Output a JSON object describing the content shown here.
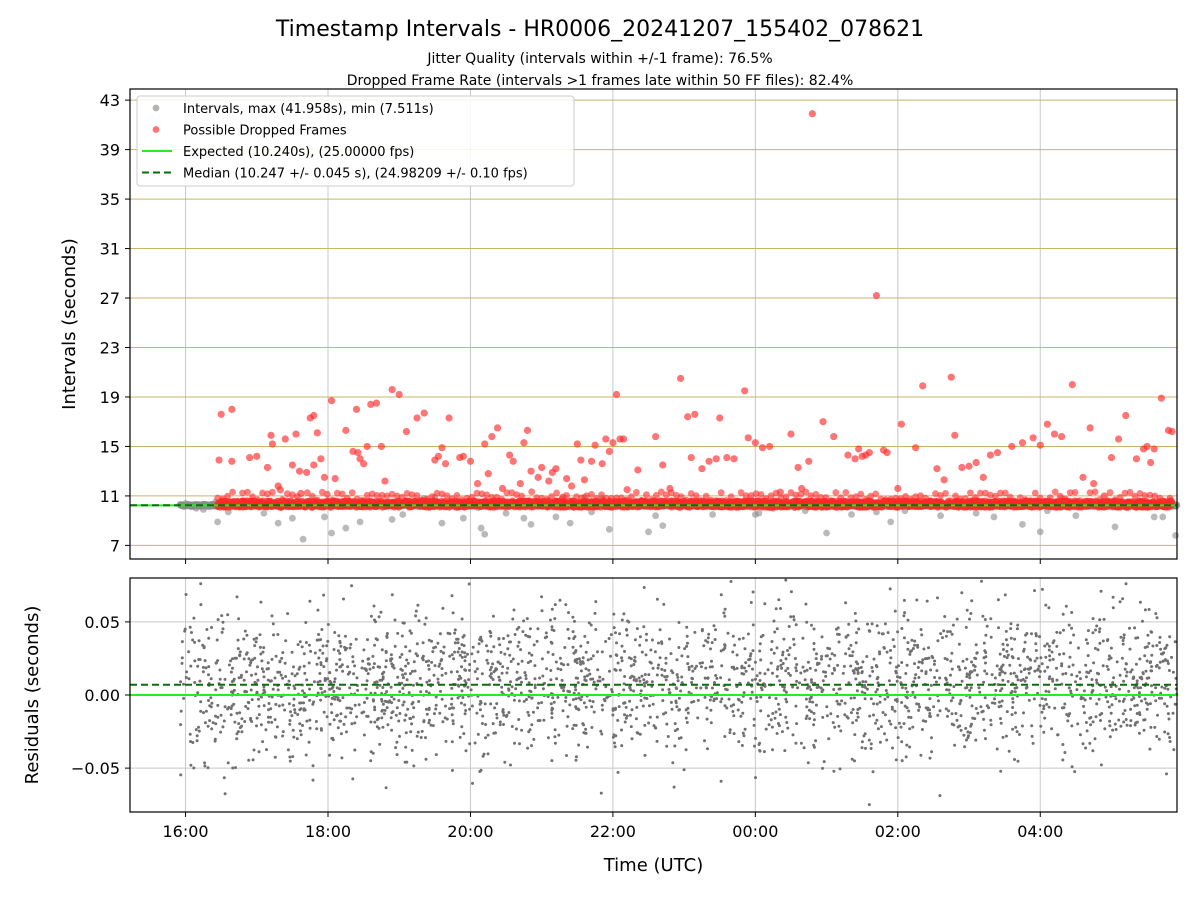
{
  "chart_data": [
    {
      "id": "intervals",
      "type": "scatter",
      "title": "Timestamp Intervals - HR0006_20241207_155402_078621",
      "subtitle_1": "Jitter Quality (intervals within +/-1 frame): 76.5%",
      "subtitle_2": "Dropped Frame Rate (intervals >1 frames late within 50 FF files): 82.4%",
      "xlabel": "",
      "ylabel": "Intervals (seconds)",
      "x_unit": "hours UTC",
      "xlim": [
        15.22,
        29.92
      ],
      "ylim": [
        5.9,
        43.9
      ],
      "yticks": [
        7,
        11,
        15,
        19,
        23,
        27,
        31,
        35,
        39,
        43
      ],
      "ytick_labels": [
        "7",
        "11",
        "15",
        "19",
        "23",
        "27",
        "31",
        "35",
        "39",
        "43"
      ],
      "hgrid_color": "#c9b46a",
      "vgrid_color": "#c8c8c8",
      "expected_interval": 10.24,
      "median_interval": 10.247,
      "legend_position": "top-left",
      "legend": [
        {
          "label": "Intervals, max (41.958s), min (7.511s)",
          "marker": "dot",
          "color": "#8c8c8c"
        },
        {
          "label": "Possible Dropped Frames",
          "marker": "dot",
          "color": "#ff2a2a"
        },
        {
          "label": "Expected (10.240s), (25.00000 fps)",
          "marker": "line",
          "color": "#22ee22"
        },
        {
          "label": "Median (10.247 +/- 0.045 s), (24.98209 +/- 0.10 fps)",
          "marker": "dashed",
          "color": "#0a6e0a"
        }
      ],
      "series": [
        {
          "name": "Intervals, max (41.958s), min (7.511s)",
          "color": "#8c8c8c",
          "points": [
            [
              15.92,
              10.3
            ],
            [
              16.0,
              10.4
            ],
            [
              16.15,
              10.0
            ],
            [
              16.25,
              9.9
            ],
            [
              16.42,
              10.5
            ],
            [
              16.45,
              8.9
            ],
            [
              16.6,
              9.7
            ],
            [
              17.1,
              9.6
            ],
            [
              17.3,
              8.8
            ],
            [
              17.5,
              9.2
            ],
            [
              17.65,
              7.5
            ],
            [
              17.95,
              9.3
            ],
            [
              18.05,
              8.0
            ],
            [
              18.25,
              8.4
            ],
            [
              18.45,
              10.6
            ],
            [
              18.45,
              8.9
            ],
            [
              18.9,
              9.1
            ],
            [
              19.05,
              9.5
            ],
            [
              19.35,
              10.8
            ],
            [
              19.5,
              10.9
            ],
            [
              19.6,
              8.8
            ],
            [
              19.9,
              9.2
            ],
            [
              20.05,
              10.6
            ],
            [
              20.15,
              8.4
            ],
            [
              20.2,
              7.9
            ],
            [
              20.5,
              9.6
            ],
            [
              20.75,
              9.2
            ],
            [
              20.85,
              8.7
            ],
            [
              21.2,
              9.3
            ],
            [
              21.4,
              8.8
            ],
            [
              21.6,
              10.9
            ],
            [
              21.7,
              9.7
            ],
            [
              21.85,
              10.8
            ],
            [
              21.95,
              8.3
            ],
            [
              22.5,
              8.1
            ],
            [
              22.6,
              9.4
            ],
            [
              22.7,
              8.6
            ],
            [
              23.4,
              9.5
            ],
            [
              24.0,
              9.5
            ],
            [
              24.05,
              9.6
            ],
            [
              24.25,
              10.0
            ],
            [
              24.7,
              9.8
            ],
            [
              25.0,
              8.0
            ],
            [
              25.35,
              9.5
            ],
            [
              25.7,
              9.7
            ],
            [
              25.9,
              8.9
            ],
            [
              26.1,
              9.8
            ],
            [
              26.6,
              9.4
            ],
            [
              27.1,
              9.6
            ],
            [
              27.35,
              9.3
            ],
            [
              27.75,
              8.7
            ],
            [
              28.0,
              8.1
            ],
            [
              28.1,
              9.8
            ],
            [
              28.3,
              10.8
            ],
            [
              28.5,
              9.4
            ],
            [
              29.05,
              8.5
            ],
            [
              29.15,
              10.5
            ],
            [
              29.6,
              9.3
            ],
            [
              29.72,
              9.3
            ],
            [
              29.78,
              10.5
            ],
            [
              29.9,
              7.8
            ]
          ]
        },
        {
          "name": "Possible Dropped Frames",
          "color": "#ff2a2a",
          "points": [
            [
              16.47,
              13.9
            ],
            [
              16.5,
              17.6
            ],
            [
              16.65,
              18.0
            ],
            [
              16.65,
              13.8
            ],
            [
              16.9,
              14.1
            ],
            [
              17.0,
              14.2
            ],
            [
              17.15,
              13.3
            ],
            [
              17.2,
              15.9
            ],
            [
              17.22,
              15.2
            ],
            [
              17.3,
              11.8
            ],
            [
              17.33,
              11.5
            ],
            [
              17.4,
              15.6
            ],
            [
              17.5,
              13.5
            ],
            [
              17.55,
              16.0
            ],
            [
              17.6,
              13.0
            ],
            [
              17.62,
              11.2
            ],
            [
              17.7,
              12.9
            ],
            [
              17.75,
              17.3
            ],
            [
              17.8,
              17.5
            ],
            [
              17.8,
              13.5
            ],
            [
              17.85,
              16.1
            ],
            [
              17.9,
              14.0
            ],
            [
              17.95,
              12.5
            ],
            [
              18.05,
              18.7
            ],
            [
              18.1,
              12.4
            ],
            [
              18.25,
              16.3
            ],
            [
              18.35,
              14.6
            ],
            [
              18.4,
              18.0
            ],
            [
              18.42,
              14.5
            ],
            [
              18.45,
              14.0
            ],
            [
              18.5,
              13.6
            ],
            [
              18.55,
              15.0
            ],
            [
              18.6,
              18.4
            ],
            [
              18.68,
              18.5
            ],
            [
              18.75,
              15.0
            ],
            [
              18.8,
              12.2
            ],
            [
              18.9,
              19.6
            ],
            [
              19.0,
              19.2
            ],
            [
              19.1,
              16.2
            ],
            [
              19.25,
              17.3
            ],
            [
              19.35,
              17.7
            ],
            [
              19.5,
              13.9
            ],
            [
              19.55,
              14.2
            ],
            [
              19.6,
              14.9
            ],
            [
              19.65,
              13.6
            ],
            [
              19.7,
              17.3
            ],
            [
              19.85,
              14.1
            ],
            [
              19.9,
              14.2
            ],
            [
              20.0,
              13.8
            ],
            [
              20.1,
              12.0
            ],
            [
              20.2,
              15.2
            ],
            [
              20.25,
              12.8
            ],
            [
              20.3,
              15.8
            ],
            [
              20.38,
              16.5
            ],
            [
              20.45,
              11.6
            ],
            [
              20.55,
              14.3
            ],
            [
              20.6,
              13.8
            ],
            [
              20.7,
              12.0
            ],
            [
              20.75,
              15.3
            ],
            [
              20.8,
              16.3
            ],
            [
              20.85,
              13.0
            ],
            [
              20.95,
              12.5
            ],
            [
              21.0,
              13.3
            ],
            [
              21.1,
              12.2
            ],
            [
              21.15,
              12.9
            ],
            [
              21.2,
              13.2
            ],
            [
              21.3,
              10.9
            ],
            [
              21.35,
              12.4
            ],
            [
              21.42,
              11.8
            ],
            [
              21.5,
              15.2
            ],
            [
              21.55,
              13.9
            ],
            [
              21.6,
              12.3
            ],
            [
              21.7,
              13.8
            ],
            [
              21.75,
              15.1
            ],
            [
              21.85,
              13.6
            ],
            [
              21.9,
              15.6
            ],
            [
              21.95,
              14.6
            ],
            [
              22.0,
              15.3
            ],
            [
              22.05,
              19.2
            ],
            [
              22.1,
              15.6
            ],
            [
              22.15,
              15.6
            ],
            [
              22.2,
              11.5
            ],
            [
              22.35,
              13.1
            ],
            [
              22.4,
              10.6
            ],
            [
              22.6,
              15.8
            ],
            [
              22.7,
              13.5
            ],
            [
              22.8,
              11.6
            ],
            [
              22.95,
              20.5
            ],
            [
              23.05,
              17.4
            ],
            [
              23.1,
              14.1
            ],
            [
              23.15,
              17.6
            ],
            [
              23.25,
              13.2
            ],
            [
              23.35,
              13.8
            ],
            [
              23.45,
              14.0
            ],
            [
              23.5,
              17.3
            ],
            [
              23.6,
              14.1
            ],
            [
              23.7,
              14.0
            ],
            [
              23.85,
              19.5
            ],
            [
              23.9,
              15.7
            ],
            [
              24.0,
              15.3
            ],
            [
              24.1,
              14.9
            ],
            [
              24.2,
              15.0
            ],
            [
              24.25,
              10.4
            ],
            [
              24.35,
              11.3
            ],
            [
              24.5,
              16.0
            ],
            [
              24.6,
              13.3
            ],
            [
              24.65,
              11.6
            ],
            [
              24.75,
              13.8
            ],
            [
              24.8,
              41.9
            ],
            [
              24.95,
              17.0
            ],
            [
              25.1,
              15.8
            ],
            [
              25.3,
              14.3
            ],
            [
              25.4,
              14.0
            ],
            [
              25.45,
              14.8
            ],
            [
              25.5,
              14.2
            ],
            [
              25.55,
              14.3
            ],
            [
              25.6,
              14.5
            ],
            [
              25.7,
              27.2
            ],
            [
              25.8,
              14.7
            ],
            [
              25.85,
              14.5
            ],
            [
              26.0,
              11.6
            ],
            [
              26.05,
              16.8
            ],
            [
              26.25,
              14.9
            ],
            [
              26.35,
              19.9
            ],
            [
              26.55,
              13.2
            ],
            [
              26.65,
              12.3
            ],
            [
              26.75,
              20.6
            ],
            [
              26.8,
              15.9
            ],
            [
              26.9,
              13.3
            ],
            [
              27.0,
              13.4
            ],
            [
              27.1,
              13.7
            ],
            [
              27.2,
              12.5
            ],
            [
              27.3,
              14.3
            ],
            [
              27.4,
              14.5
            ],
            [
              27.6,
              15.0
            ],
            [
              27.75,
              15.3
            ],
            [
              27.9,
              15.7
            ],
            [
              28.0,
              15.1
            ],
            [
              28.1,
              16.8
            ],
            [
              28.2,
              16.0
            ],
            [
              28.3,
              15.8
            ],
            [
              28.45,
              20.0
            ],
            [
              28.6,
              12.5
            ],
            [
              28.7,
              16.5
            ],
            [
              28.75,
              12.0
            ],
            [
              28.9,
              11.0
            ],
            [
              29.0,
              14.1
            ],
            [
              29.1,
              15.6
            ],
            [
              29.2,
              17.5
            ],
            [
              29.35,
              14.0
            ],
            [
              29.45,
              14.8
            ],
            [
              29.5,
              15.0
            ],
            [
              29.55,
              13.7
            ],
            [
              29.6,
              14.8
            ],
            [
              29.7,
              18.9
            ],
            [
              29.8,
              16.3
            ],
            [
              29.85,
              16.2
            ]
          ]
        }
      ],
      "dropped_band": {
        "x_start": 16.45,
        "x_end": 29.85,
        "y": 10.24
      }
    },
    {
      "id": "residuals",
      "type": "scatter",
      "title": "",
      "xlabel": "Time (UTC)",
      "ylabel": "Residuals (seconds)",
      "xlim": [
        15.22,
        29.92
      ],
      "ylim": [
        -0.08,
        0.08
      ],
      "yticks": [
        -0.05,
        0.0,
        0.05
      ],
      "ytick_labels": [
        "−0.05",
        "0.00",
        "0.05"
      ],
      "xticks": [
        16,
        18,
        20,
        22,
        24,
        26,
        28
      ],
      "xtick_labels": [
        "16:00",
        "18:00",
        "20:00",
        "22:00",
        "00:00",
        "02:00",
        "04:00"
      ],
      "expected_residual": 0.0,
      "median_residual": 0.007,
      "series": [
        {
          "name": "Residuals",
          "color": "#707070",
          "x_start": 15.93,
          "x_end": 29.92,
          "count": 2600,
          "center": 0.008,
          "spread": 0.025
        }
      ]
    }
  ]
}
